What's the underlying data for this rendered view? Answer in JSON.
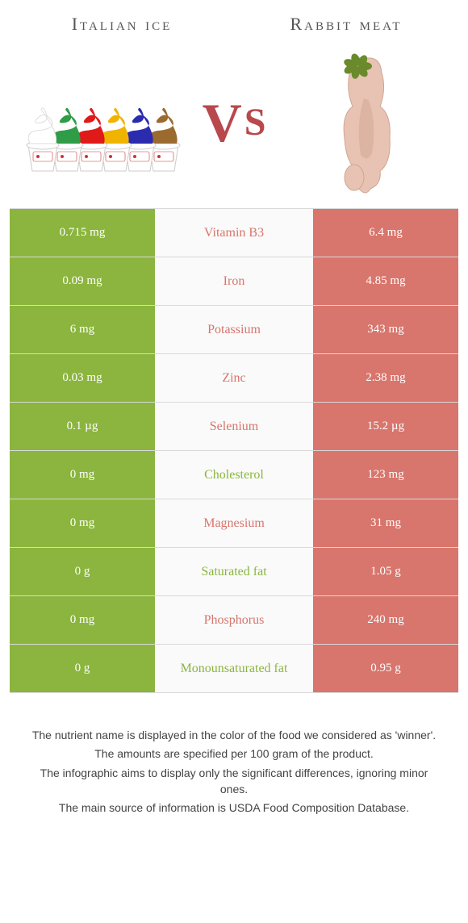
{
  "titles": {
    "left": "Italian ice",
    "right": "Rabbit meat"
  },
  "vs": {
    "v": "V",
    "s": "S"
  },
  "colors": {
    "left_accent": "#8bb53e",
    "right_accent": "#d8756c",
    "neutral_bg": "#fafafa",
    "row_border": "#d9d9d9",
    "title_color": "#555555",
    "footer_color": "#434343",
    "vs_color": "#b9484c",
    "white": "#ffffff"
  },
  "cone_colors": [
    "#ffffff",
    "#2f9c47",
    "#e01919",
    "#f0b400",
    "#2b2bb0",
    "#9a6a2f"
  ],
  "rabbit_colors": {
    "flesh": "#e8c3b3",
    "dark": "#cfa590",
    "herb": "#6a8a2b"
  },
  "rows": [
    {
      "left": "0.715 mg",
      "label": "Vitamin B3",
      "right": "6.4 mg",
      "label_side": "right"
    },
    {
      "left": "0.09 mg",
      "label": "Iron",
      "right": "4.85 mg",
      "label_side": "right"
    },
    {
      "left": "6 mg",
      "label": "Potassium",
      "right": "343 mg",
      "label_side": "right"
    },
    {
      "left": "0.03 mg",
      "label": "Zinc",
      "right": "2.38 mg",
      "label_side": "right"
    },
    {
      "left": "0.1 µg",
      "label": "Selenium",
      "right": "15.2 µg",
      "label_side": "right"
    },
    {
      "left": "0 mg",
      "label": "Cholesterol",
      "right": "123 mg",
      "label_side": "left"
    },
    {
      "left": "0 mg",
      "label": "Magnesium",
      "right": "31 mg",
      "label_side": "right"
    },
    {
      "left": "0 g",
      "label": "Saturated fat",
      "right": "1.05 g",
      "label_side": "left"
    },
    {
      "left": "0 mg",
      "label": "Phosphorus",
      "right": "240 mg",
      "label_side": "right"
    },
    {
      "left": "0 g",
      "label": "Monounsaturated fat",
      "right": "0.95 g",
      "label_side": "left"
    }
  ],
  "footer": [
    "The nutrient name is displayed in the color of the food we considered as 'winner'.",
    "The amounts are specified per 100 gram of the product.",
    "The infographic aims to display only the significant differences, ignoring minor ones.",
    "The main source of information is USDA Food Composition Database."
  ]
}
